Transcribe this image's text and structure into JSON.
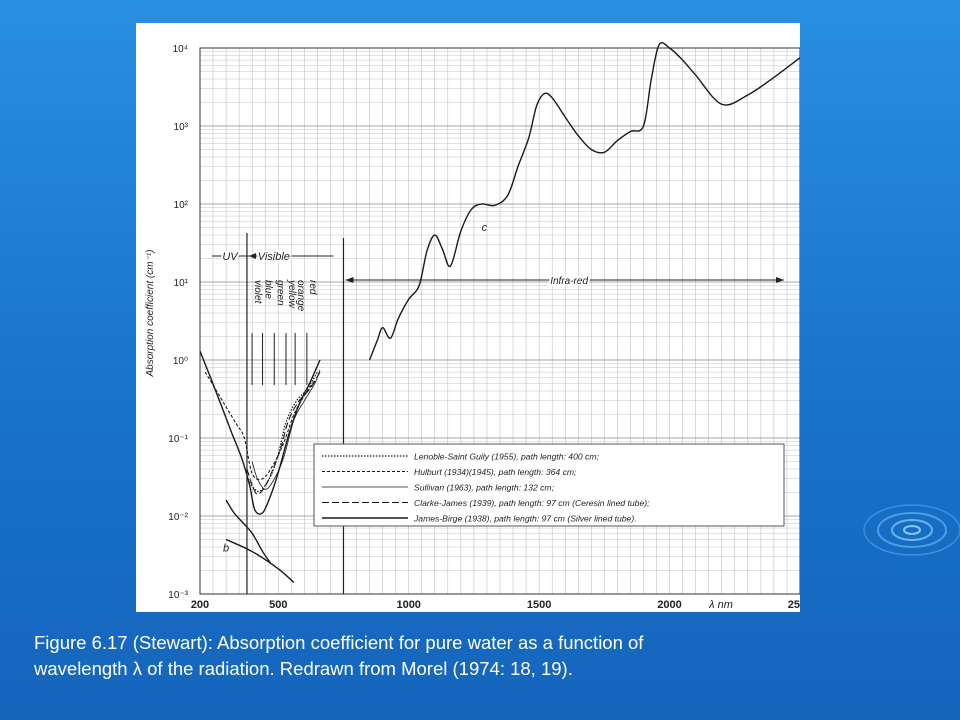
{
  "slide": {
    "caption_line1": "Figure 6.17 (Stewart): Absorption coefficient for pure water as a function of",
    "caption_line2": "wavelength λ of the radiation. Redrawn from Morel (1974: 18, 19).",
    "background_color": "#1f7fd6",
    "caption_color": "#ffffff",
    "decoration": "ripple-icon"
  },
  "chart_data": {
    "type": "line",
    "ylabel": "Absorption coefficient (cm⁻¹)",
    "xlabel": "λ nm",
    "xlim": [
      200,
      2500
    ],
    "ylim": [
      0.001,
      10000
    ],
    "y_scale": "log",
    "grid": true,
    "x_ticks": [
      {
        "value": 200,
        "label": "200"
      },
      {
        "value": 500,
        "label": "500"
      },
      {
        "value": 1000,
        "label": "1000"
      },
      {
        "value": 1500,
        "label": "1500"
      },
      {
        "value": 2000,
        "label": "2000"
      },
      {
        "value": 2500,
        "label": "2500"
      }
    ],
    "y_ticks": [
      {
        "value": 0.001,
        "label": "10⁻³"
      },
      {
        "value": 0.01,
        "label": "10⁻²"
      },
      {
        "value": 0.1,
        "label": "10⁻¹"
      },
      {
        "value": 1,
        "label": "10⁰"
      },
      {
        "value": 10,
        "label": "10¹"
      },
      {
        "value": 100,
        "label": "10²"
      },
      {
        "value": 1000,
        "label": "10³"
      },
      {
        "value": 10000,
        "label": "10⁴"
      }
    ],
    "regions": [
      {
        "label": "UV",
        "from": 200,
        "to": 380
      },
      {
        "label": "Visible",
        "from": 380,
        "to": 750
      },
      {
        "label": "Infra-red",
        "from": 750,
        "to": 2500
      }
    ],
    "color_bands": [
      {
        "label": "violet",
        "wavelength": 415
      },
      {
        "label": "blue",
        "wavelength": 455
      },
      {
        "label": "green",
        "wavelength": 500
      },
      {
        "label": "yellow",
        "wavelength": 545
      },
      {
        "label": "orange",
        "wavelength": 580
      },
      {
        "label": "red",
        "wavelength": 625
      }
    ],
    "annotations": [
      {
        "text": "c",
        "x": 1290,
        "y": 45
      },
      {
        "text": "b",
        "x": 300,
        "y": 0.0035
      }
    ],
    "legend_placement": "bottom-right",
    "series": [
      {
        "name": "Lenoble-Saint Guily (1955), path length: 400 cm;",
        "style": "dotted",
        "x": [
          380,
          400,
          430,
          470,
          500,
          530,
          570,
          610,
          650
        ],
        "y": [
          0.032,
          0.024,
          0.021,
          0.032,
          0.062,
          0.16,
          0.3,
          0.42,
          0.7
        ]
      },
      {
        "name": "Hulburt (1934)(1945), path length: 364 cm;",
        "style": "dashed",
        "x": [
          220,
          260,
          300,
          340,
          370,
          400,
          440,
          480,
          520,
          560,
          600,
          640
        ],
        "y": [
          0.7,
          0.42,
          0.25,
          0.15,
          0.1,
          0.035,
          0.03,
          0.045,
          0.085,
          0.2,
          0.35,
          0.55
        ]
      },
      {
        "name": "Sullivan (1963), path length: 132 cm;",
        "style": "thin-solid",
        "x": [
          400,
          420,
          450,
          480,
          520,
          560,
          600,
          640,
          660
        ],
        "y": [
          0.05,
          0.03,
          0.022,
          0.028,
          0.055,
          0.17,
          0.3,
          0.5,
          0.75
        ]
      },
      {
        "name": "Clarke-James (1939), path length: 97 cm (Ceresin lined tube);",
        "style": "long-dashed",
        "x": [
          380,
          400,
          420,
          450,
          480,
          510,
          540,
          580,
          620,
          660
        ],
        "y": [
          0.04,
          0.025,
          0.019,
          0.024,
          0.04,
          0.075,
          0.17,
          0.3,
          0.42,
          0.7
        ]
      },
      {
        "name": "James-Birge (1938), path length: 97 cm (Silver lined tube).",
        "style": "solid",
        "x": [
          200,
          240,
          280,
          320,
          360,
          390,
          410,
          440,
          470,
          500,
          540,
          580,
          620,
          660
        ],
        "y": [
          1.3,
          0.6,
          0.27,
          0.12,
          0.055,
          0.025,
          0.012,
          0.011,
          0.018,
          0.036,
          0.11,
          0.27,
          0.5,
          1.0
        ]
      },
      {
        "name": "",
        "style": "solid",
        "x": [
          300,
          330,
          360,
          400,
          440,
          470
        ],
        "y": [
          0.016,
          0.011,
          0.0085,
          0.006,
          0.0035,
          0.0025
        ]
      },
      {
        "name": "",
        "style": "solid",
        "x": [
          300,
          400,
          500,
          560
        ],
        "y": [
          0.005,
          0.0035,
          0.0021,
          0.0014
        ]
      },
      {
        "name": "",
        "style": "solid",
        "x": [
          850,
          880,
          900,
          930,
          960,
          1000,
          1040,
          1070,
          1100,
          1130,
          1160,
          1200,
          1240,
          1280,
          1330,
          1380,
          1420,
          1460,
          1490,
          1520,
          1550,
          1600,
          1650,
          1700,
          1750,
          1800,
          1850,
          1900,
          1930,
          1960,
          2000,
          2050,
          2100,
          2200,
          2300,
          2400,
          2500
        ],
        "y": [
          1.0,
          1.8,
          2.6,
          1.9,
          3.4,
          6.0,
          9.0,
          25,
          40,
          26,
          16,
          45,
          85,
          100,
          96,
          130,
          310,
          700,
          1800,
          2600,
          2300,
          1300,
          750,
          500,
          460,
          650,
          850,
          1000,
          4000,
          11000,
          10000,
          7000,
          4500,
          1900,
          2500,
          4200,
          7500
        ]
      }
    ]
  }
}
